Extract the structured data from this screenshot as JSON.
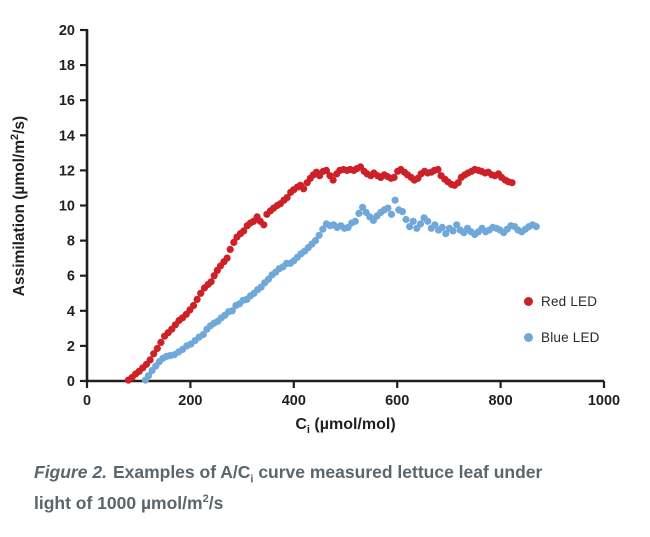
{
  "page": {
    "background": "#ffffff"
  },
  "chart_data": {
    "type": "scatter",
    "title": "",
    "xlabel_main": "C",
    "xlabel_sub": "i",
    "xlabel_rest": " (µmol/mol)",
    "ylabel_pre": "Assimilation (µmol/m",
    "ylabel_sup": "2",
    "ylabel_post": "/s)",
    "xlim": [
      0,
      1000
    ],
    "ylim": [
      0,
      20
    ],
    "xticks": [
      0,
      200,
      400,
      600,
      800,
      1000
    ],
    "yticks": [
      0,
      2,
      4,
      6,
      8,
      10,
      12,
      14,
      16,
      18,
      20
    ],
    "grid": false,
    "legend_position": "right-middle",
    "axis_color": "#231f20",
    "marker_radius": 3.6,
    "series": [
      {
        "name": "Red LED",
        "color": "#cd2027",
        "points": [
          [
            80,
            0.05
          ],
          [
            87,
            0.2
          ],
          [
            94,
            0.4
          ],
          [
            101,
            0.55
          ],
          [
            108,
            0.75
          ],
          [
            115,
            0.95
          ],
          [
            122,
            1.2
          ],
          [
            129,
            1.55
          ],
          [
            136,
            1.85
          ],
          [
            143,
            2.2
          ],
          [
            150,
            2.55
          ],
          [
            157,
            2.75
          ],
          [
            164,
            2.95
          ],
          [
            171,
            3.2
          ],
          [
            178,
            3.45
          ],
          [
            185,
            3.6
          ],
          [
            192,
            3.8
          ],
          [
            199,
            4.05
          ],
          [
            206,
            4.3
          ],
          [
            213,
            4.65
          ],
          [
            220,
            5.0
          ],
          [
            227,
            5.3
          ],
          [
            234,
            5.5
          ],
          [
            240,
            5.65
          ],
          [
            246,
            6.0
          ],
          [
            252,
            6.3
          ],
          [
            258,
            6.55
          ],
          [
            265,
            6.8
          ],
          [
            271,
            7.0
          ],
          [
            277,
            7.5
          ],
          [
            284,
            7.9
          ],
          [
            290,
            8.2
          ],
          [
            297,
            8.4
          ],
          [
            303,
            8.55
          ],
          [
            310,
            8.85
          ],
          [
            316,
            9.0
          ],
          [
            322,
            9.1
          ],
          [
            329,
            9.35
          ],
          [
            335,
            9.1
          ],
          [
            342,
            8.9
          ],
          [
            348,
            9.5
          ],
          [
            355,
            9.7
          ],
          [
            361,
            9.85
          ],
          [
            368,
            10.0
          ],
          [
            374,
            10.1
          ],
          [
            381,
            10.3
          ],
          [
            387,
            10.45
          ],
          [
            394,
            10.75
          ],
          [
            400,
            10.9
          ],
          [
            407,
            11.05
          ],
          [
            413,
            11.15
          ],
          [
            419,
            10.95
          ],
          [
            426,
            11.3
          ],
          [
            432,
            11.55
          ],
          [
            438,
            11.75
          ],
          [
            444,
            11.9
          ],
          [
            450,
            11.7
          ],
          [
            457,
            11.95
          ],
          [
            463,
            12.0
          ],
          [
            470,
            11.7
          ],
          [
            476,
            11.45
          ],
          [
            483,
            11.8
          ],
          [
            489,
            12.0
          ],
          [
            496,
            12.05
          ],
          [
            503,
            12.0
          ],
          [
            509,
            12.05
          ],
          [
            516,
            12.0
          ],
          [
            522,
            12.1
          ],
          [
            529,
            12.2
          ],
          [
            536,
            11.95
          ],
          [
            542,
            11.8
          ],
          [
            549,
            11.7
          ],
          [
            555,
            11.85
          ],
          [
            562,
            11.7
          ],
          [
            568,
            11.6
          ],
          [
            575,
            11.75
          ],
          [
            581,
            11.65
          ],
          [
            588,
            11.55
          ],
          [
            594,
            11.6
          ],
          [
            601,
            11.95
          ],
          [
            607,
            12.05
          ],
          [
            614,
            11.9
          ],
          [
            620,
            11.75
          ],
          [
            627,
            11.6
          ],
          [
            633,
            11.45
          ],
          [
            640,
            11.55
          ],
          [
            646,
            11.8
          ],
          [
            653,
            11.95
          ],
          [
            659,
            11.85
          ],
          [
            666,
            11.9
          ],
          [
            672,
            12.0
          ],
          [
            679,
            12.05
          ],
          [
            685,
            11.7
          ],
          [
            692,
            11.5
          ],
          [
            698,
            11.35
          ],
          [
            705,
            11.2
          ],
          [
            711,
            11.15
          ],
          [
            718,
            11.3
          ],
          [
            724,
            11.6
          ],
          [
            731,
            11.75
          ],
          [
            737,
            11.85
          ],
          [
            744,
            11.95
          ],
          [
            750,
            12.05
          ],
          [
            757,
            12.0
          ],
          [
            763,
            11.95
          ],
          [
            770,
            11.85
          ],
          [
            776,
            11.9
          ],
          [
            783,
            11.75
          ],
          [
            789,
            11.7
          ],
          [
            796,
            11.8
          ],
          [
            802,
            11.6
          ],
          [
            809,
            11.45
          ],
          [
            815,
            11.35
          ],
          [
            822,
            11.3
          ]
        ]
      },
      {
        "name": "Blue LED",
        "color": "#6fa8d9",
        "points": [
          [
            113,
            0.05
          ],
          [
            119,
            0.3
          ],
          [
            126,
            0.6
          ],
          [
            133,
            0.85
          ],
          [
            140,
            1.1
          ],
          [
            147,
            1.3
          ],
          [
            154,
            1.4
          ],
          [
            161,
            1.45
          ],
          [
            169,
            1.5
          ],
          [
            177,
            1.65
          ],
          [
            185,
            1.8
          ],
          [
            193,
            2.0
          ],
          [
            201,
            2.1
          ],
          [
            209,
            2.3
          ],
          [
            217,
            2.5
          ],
          [
            225,
            2.65
          ],
          [
            232,
            2.95
          ],
          [
            239,
            3.15
          ],
          [
            246,
            3.3
          ],
          [
            253,
            3.4
          ],
          [
            260,
            3.6
          ],
          [
            267,
            3.75
          ],
          [
            274,
            3.95
          ],
          [
            281,
            4.0
          ],
          [
            288,
            4.3
          ],
          [
            295,
            4.4
          ],
          [
            302,
            4.6
          ],
          [
            309,
            4.65
          ],
          [
            316,
            4.85
          ],
          [
            323,
            5.0
          ],
          [
            330,
            5.2
          ],
          [
            337,
            5.35
          ],
          [
            344,
            5.6
          ],
          [
            351,
            5.8
          ],
          [
            358,
            6.05
          ],
          [
            365,
            6.2
          ],
          [
            372,
            6.4
          ],
          [
            379,
            6.5
          ],
          [
            386,
            6.7
          ],
          [
            393,
            6.7
          ],
          [
            400,
            6.85
          ],
          [
            407,
            7.05
          ],
          [
            414,
            7.25
          ],
          [
            421,
            7.4
          ],
          [
            428,
            7.6
          ],
          [
            435,
            7.8
          ],
          [
            442,
            8.0
          ],
          [
            449,
            8.3
          ],
          [
            456,
            8.65
          ],
          [
            463,
            8.95
          ],
          [
            470,
            8.85
          ],
          [
            477,
            8.9
          ],
          [
            484,
            8.75
          ],
          [
            491,
            8.85
          ],
          [
            498,
            8.7
          ],
          [
            505,
            8.75
          ],
          [
            512,
            9.0
          ],
          [
            519,
            9.1
          ],
          [
            526,
            9.55
          ],
          [
            533,
            9.9
          ],
          [
            540,
            9.6
          ],
          [
            547,
            9.35
          ],
          [
            554,
            9.15
          ],
          [
            561,
            9.4
          ],
          [
            568,
            9.6
          ],
          [
            575,
            9.75
          ],
          [
            582,
            9.85
          ],
          [
            589,
            9.5
          ],
          [
            596,
            10.3
          ],
          [
            603,
            9.75
          ],
          [
            610,
            9.65
          ],
          [
            617,
            9.2
          ],
          [
            624,
            8.8
          ],
          [
            631,
            9.1
          ],
          [
            638,
            8.7
          ],
          [
            645,
            8.95
          ],
          [
            652,
            9.3
          ],
          [
            659,
            9.1
          ],
          [
            666,
            8.7
          ],
          [
            673,
            8.9
          ],
          [
            680,
            8.6
          ],
          [
            687,
            8.75
          ],
          [
            694,
            8.4
          ],
          [
            701,
            8.7
          ],
          [
            708,
            8.55
          ],
          [
            715,
            8.9
          ],
          [
            722,
            8.6
          ],
          [
            729,
            8.45
          ],
          [
            736,
            8.7
          ],
          [
            743,
            8.5
          ],
          [
            750,
            8.35
          ],
          [
            757,
            8.5
          ],
          [
            764,
            8.7
          ],
          [
            771,
            8.5
          ],
          [
            778,
            8.6
          ],
          [
            785,
            8.75
          ],
          [
            792,
            8.7
          ],
          [
            799,
            8.6
          ],
          [
            806,
            8.45
          ],
          [
            813,
            8.65
          ],
          [
            820,
            8.85
          ],
          [
            827,
            8.8
          ],
          [
            834,
            8.6
          ],
          [
            841,
            8.5
          ],
          [
            848,
            8.65
          ],
          [
            855,
            8.8
          ],
          [
            862,
            8.9
          ],
          [
            869,
            8.8
          ]
        ]
      }
    ]
  },
  "legend": {
    "items": [
      {
        "label": "Red LED",
        "color": "#cd2027"
      },
      {
        "label": "Blue LED",
        "color": "#6fa8d9"
      }
    ]
  },
  "caption": {
    "figure_label": "Figure 2.",
    "part1": "Examples of A/C",
    "sub": "i",
    "part2": " curve measured lettuce leaf under",
    "part3": "light of 1000 µmol/m",
    "sup": "2",
    "part4": "/s",
    "color": "#5b656e"
  }
}
